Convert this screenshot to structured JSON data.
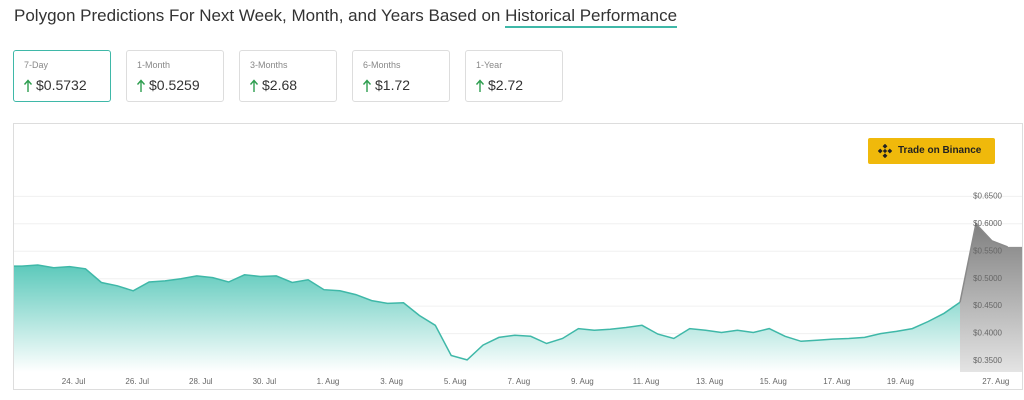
{
  "header": {
    "title": "Polygon Predictions For Next Week, Month, and Years Based on",
    "link": "Historical Performance"
  },
  "cards": [
    {
      "label": "7-Day",
      "value": "$0.5732"
    },
    {
      "label": "1-Month",
      "value": "$0.5259"
    },
    {
      "label": "3-Months",
      "value": "$2.68"
    },
    {
      "label": "6-Months",
      "value": "$1.72"
    },
    {
      "label": "1-Year",
      "value": "$2.72"
    }
  ],
  "button": "Trade on Binance",
  "chart_data": {
    "type": "area",
    "categories": [
      null,
      null,
      null,
      null,
      "24. Jul",
      null,
      null,
      null,
      "26. Jul",
      null,
      null,
      null,
      "28. Jul",
      null,
      null,
      null,
      "30. Jul",
      null,
      null,
      null,
      "1. Aug",
      null,
      null,
      null,
      "3. Aug",
      null,
      null,
      null,
      "5. Aug",
      null,
      null,
      null,
      "7. Aug",
      null,
      null,
      null,
      "9. Aug",
      null,
      null,
      null,
      "11. Aug",
      null,
      null,
      null,
      "13. Aug",
      null,
      null,
      null,
      "15. Aug",
      null,
      null,
      null,
      "17. Aug",
      null,
      null,
      null,
      "19. Aug",
      null,
      null,
      null,
      null,
      null,
      "27. Aug",
      null
    ],
    "series": [
      {
        "color": "#3fb8a8",
        "values": [
          0.523,
          0.523,
          0.525,
          0.52,
          0.522,
          0.518,
          0.493,
          0.487,
          0.478,
          0.494,
          0.496,
          0.5,
          0.505,
          0.502,
          0.494,
          0.507,
          0.504,
          0.505,
          0.493,
          0.498,
          0.48,
          0.478,
          0.471,
          0.46,
          0.455,
          0.456,
          0.433,
          0.415,
          0.36,
          0.352,
          0.379,
          0.393,
          0.397,
          0.395,
          0.382,
          0.391,
          0.409,
          0.406,
          0.408,
          0.411,
          0.415,
          0.399,
          0.391,
          0.409,
          0.406,
          0.402,
          0.406,
          0.402,
          0.409,
          0.395,
          0.386,
          0.388,
          0.39,
          0.391,
          0.393,
          0.4,
          0.404,
          0.409,
          0.422,
          0.437,
          0.457,
          null,
          null,
          null
        ]
      },
      {
        "color": "#8a8a8a",
        "values": [
          null,
          null,
          null,
          null,
          null,
          null,
          null,
          null,
          null,
          null,
          null,
          null,
          null,
          null,
          null,
          null,
          null,
          null,
          null,
          null,
          null,
          null,
          null,
          null,
          null,
          null,
          null,
          null,
          null,
          null,
          null,
          null,
          null,
          null,
          null,
          null,
          null,
          null,
          null,
          null,
          null,
          null,
          null,
          null,
          null,
          null,
          null,
          null,
          null,
          null,
          null,
          null,
          null,
          null,
          null,
          null,
          null,
          null,
          null,
          null,
          0.457,
          0.6,
          0.569,
          0.558
        ]
      }
    ],
    "ylim": [
      0.33,
      0.78
    ],
    "yticks": [
      {
        "value": 0.35,
        "label": "$0.3500"
      },
      {
        "value": 0.4,
        "label": "$0.4000"
      },
      {
        "value": 0.45,
        "label": "$0.4500"
      },
      {
        "value": 0.5,
        "label": "$0.5000"
      },
      {
        "value": 0.55,
        "label": "$0.5500"
      },
      {
        "value": 0.6,
        "label": "$0.6000"
      },
      {
        "value": 0.65,
        "label": "$0.6500"
      }
    ],
    "grid": true
  }
}
